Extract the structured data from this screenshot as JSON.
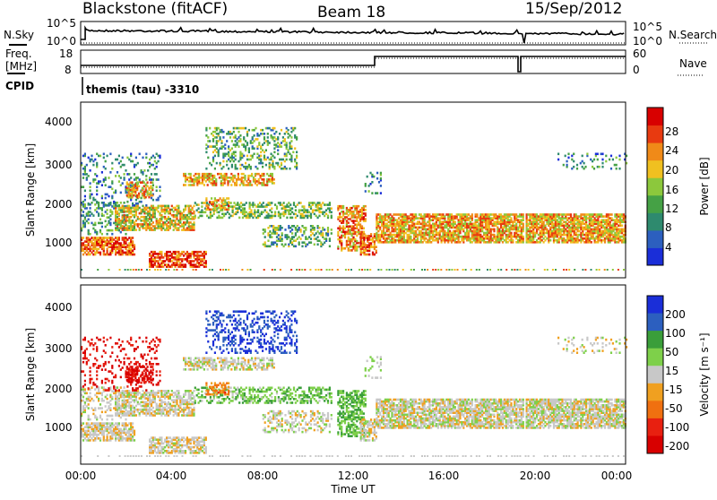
{
  "header": {
    "station": "Blackstone (fitACF)",
    "beam": "Beam 18",
    "date": "15/Sep/2012"
  },
  "side_labels": {
    "nsky": "N.Sky",
    "nsearch": "N.Search",
    "freq_line1": "Freq.",
    "freq_line2": "[MHz]",
    "nave": "Nave",
    "cpid": "CPID"
  },
  "noise_panel": {
    "ticks_left": [
      "10^5",
      "10^0"
    ],
    "ticks_right": [
      "10^5",
      "10^0"
    ]
  },
  "freq_panel": {
    "ticks_left": [
      "18",
      "8"
    ],
    "ticks_right": [
      "60",
      "0"
    ],
    "freq_step_time": "13:00",
    "freq_gap_time": "19:30"
  },
  "cpid_text": "themis (tau) -3310",
  "chart_data": [
    {
      "type": "heatmap",
      "title": "Power",
      "ylabel": "Slant Range [km]",
      "yticks": [
        "1000",
        "2000",
        "3000",
        "4000"
      ],
      "ylim": [
        200,
        4500
      ],
      "colorbar_label": "Power [dB]",
      "colorbar_ticks": [
        "4",
        "8",
        "12",
        "16",
        "20",
        "24",
        "28"
      ],
      "colors": [
        "#1a2ed8",
        "#2c5fbf",
        "#2e8a6e",
        "#45a145",
        "#8cc83c",
        "#f0c020",
        "#f08a18",
        "#e83a10",
        "#d80000"
      ]
    },
    {
      "type": "heatmap",
      "title": "Velocity",
      "ylabel": "Slant Range [km]",
      "yticks": [
        "1000",
        "2000",
        "3000",
        "4000"
      ],
      "ylim": [
        200,
        4500
      ],
      "colorbar_label": "Velocity [m s⁻¹]",
      "colorbar_ticks": [
        "200",
        "100",
        "50",
        "15",
        "-15",
        "-50",
        "-100",
        "-200"
      ],
      "colors": [
        "#1a2ed8",
        "#2c5fbf",
        "#3a9e3a",
        "#7ed04a",
        "#c8c8c8",
        "#f0a020",
        "#f07010",
        "#e82010",
        "#d80000"
      ]
    }
  ],
  "x_axis": {
    "ticks": [
      "00:00",
      "04:00",
      "08:00",
      "12:00",
      "16:00",
      "20:00",
      "00:00"
    ],
    "label": "Time UT"
  }
}
